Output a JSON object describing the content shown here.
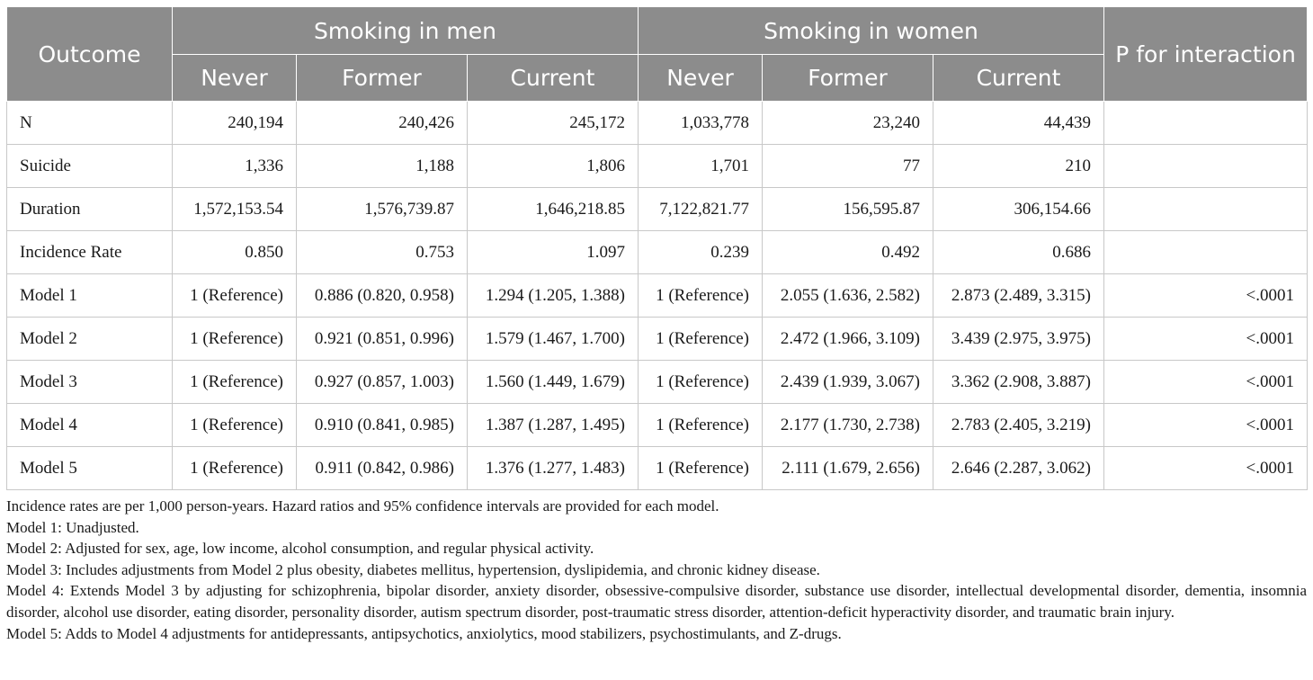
{
  "header": {
    "outcome": "Outcome",
    "men_group": "Smoking in men",
    "women_group": "Smoking in women",
    "p_interaction": "P for interaction",
    "sub_columns": [
      "Never",
      "Former",
      "Current",
      "Never",
      "Former",
      "Current"
    ]
  },
  "rows": [
    {
      "label": "N",
      "cells": [
        "240,194",
        "240,426",
        "245,172",
        "1,033,778",
        "23,240",
        "44,439",
        ""
      ]
    },
    {
      "label": "Suicide",
      "cells": [
        "1,336",
        "1,188",
        "1,806",
        "1,701",
        "77",
        "210",
        ""
      ]
    },
    {
      "label": "Duration",
      "cells": [
        "1,572,153.54",
        "1,576,739.87",
        "1,646,218.85",
        "7,122,821.77",
        "156,595.87",
        "306,154.66",
        ""
      ]
    },
    {
      "label": "Incidence Rate",
      "cells": [
        "0.850",
        "0.753",
        "1.097",
        "0.239",
        "0.492",
        "0.686",
        ""
      ]
    },
    {
      "label": "Model 1",
      "cells": [
        "1 (Reference)",
        "0.886 (0.820, 0.958)",
        "1.294 (1.205, 1.388)",
        "1 (Reference)",
        "2.055 (1.636, 2.582)",
        "2.873 (2.489, 3.315)",
        "<.0001"
      ]
    },
    {
      "label": "Model 2",
      "cells": [
        "1 (Reference)",
        "0.921 (0.851, 0.996)",
        "1.579 (1.467, 1.700)",
        "1 (Reference)",
        "2.472 (1.966, 3.109)",
        "3.439 (2.975, 3.975)",
        "<.0001"
      ]
    },
    {
      "label": "Model 3",
      "cells": [
        "1 (Reference)",
        "0.927 (0.857, 1.003)",
        "1.560 (1.449, 1.679)",
        "1 (Reference)",
        "2.439 (1.939, 3.067)",
        "3.362 (2.908, 3.887)",
        "<.0001"
      ]
    },
    {
      "label": "Model 4",
      "cells": [
        "1 (Reference)",
        "0.910 (0.841, 0.985)",
        "1.387 (1.287, 1.495)",
        "1 (Reference)",
        "2.177 (1.730, 2.738)",
        "2.783 (2.405, 3.219)",
        "<.0001"
      ]
    },
    {
      "label": "Model 5",
      "cells": [
        "1 (Reference)",
        "0.911 (0.842, 0.986)",
        "1.376 (1.277, 1.483)",
        "1 (Reference)",
        "2.111 (1.679, 2.656)",
        "2.646 (2.287, 3.062)",
        "<.0001"
      ]
    }
  ],
  "notes": [
    "Incidence rates are per 1,000 person-years. Hazard ratios and 95% confidence intervals are provided for each model.",
    "Model 1: Unadjusted.",
    "Model 2: Adjusted for sex, age, low income, alcohol consumption, and regular physical activity.",
    "Model 3: Includes adjustments from Model 2 plus obesity, diabetes mellitus, hypertension, dyslipidemia, and chronic kidney disease.",
    "Model 4: Extends Model 3 by adjusting for schizophrenia, bipolar disorder, anxiety disorder, obsessive-compulsive disorder, substance use disorder, intellectual developmental disorder, dementia, insomnia disorder, alcohol use disorder, eating disorder, personality disorder, autism spectrum disorder, post-traumatic stress disorder, attention-deficit hyperactivity disorder, and traumatic brain injury.",
    "Model 5: Adds to Model 4 adjustments for antidepressants, antipsychotics, anxiolytics, mood stabilizers, psychostimulants, and Z-drugs."
  ]
}
